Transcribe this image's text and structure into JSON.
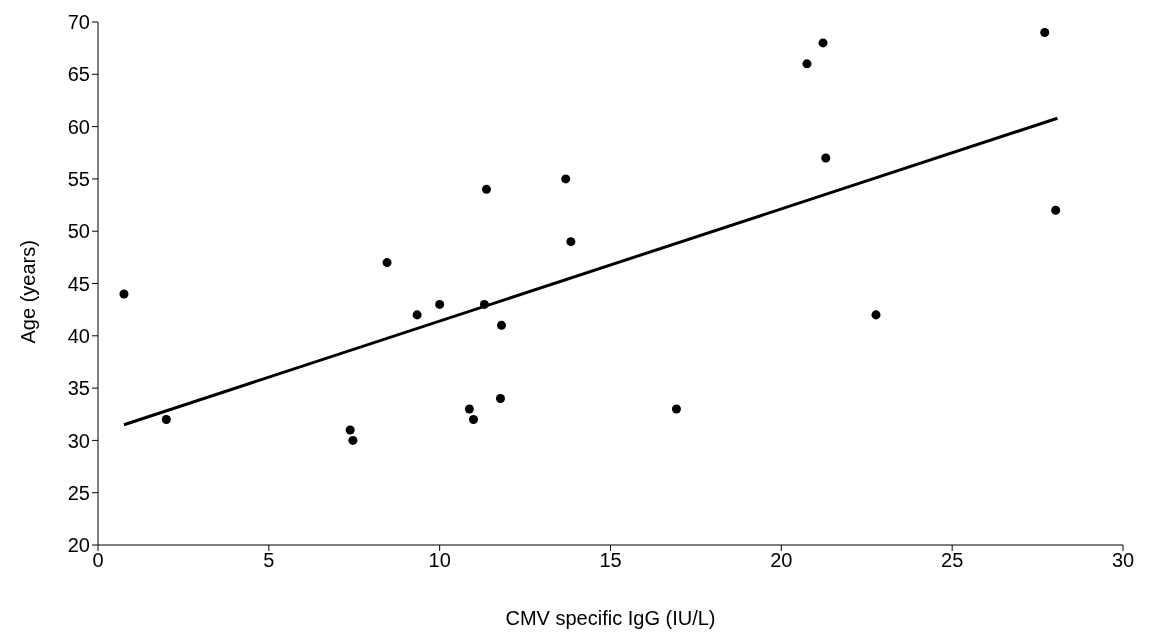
{
  "chart_data": {
    "type": "scatter",
    "xlabel": "CMV specific IgG (IU/L)",
    "ylabel": "Age (years)",
    "xlim": [
      0,
      30
    ],
    "xticks": [
      0,
      5,
      10,
      15,
      20,
      25,
      30
    ],
    "ylim": [
      20,
      70
    ],
    "yticks": [
      20,
      25,
      30,
      35,
      40,
      45,
      50,
      55,
      60,
      65,
      70
    ],
    "grid": false,
    "legend": false,
    "marker": "circle",
    "series": [
      {
        "color": "#000000",
        "x": [
          0.76,
          2.0,
          7.38,
          7.46,
          8.46,
          9.34,
          10.0,
          10.87,
          10.99,
          11.31,
          11.37,
          11.81,
          11.78,
          13.69,
          13.84,
          16.93,
          20.75,
          21.22,
          21.3,
          22.77,
          27.71,
          28.03
        ],
        "values": [
          44,
          32,
          31,
          30,
          47,
          42,
          43,
          33,
          32,
          43,
          54,
          41,
          34,
          55,
          49,
          33,
          66,
          68,
          57,
          42,
          69,
          52
        ]
      },
      {
        "type": "line",
        "color": "#000000",
        "line_style": "solid",
        "marker": "none",
        "x": [
          0.76,
          28.08
        ],
        "values": [
          31.5,
          60.8
        ]
      }
    ]
  }
}
